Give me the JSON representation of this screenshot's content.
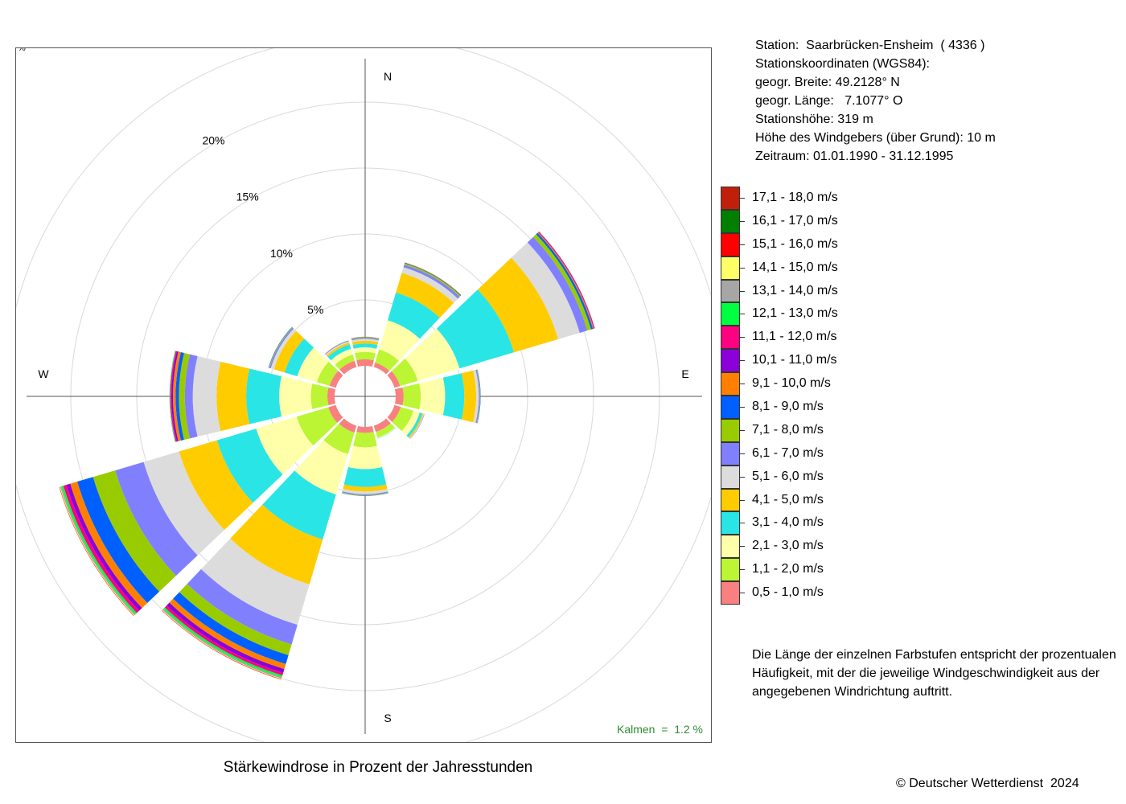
{
  "info": {
    "lines": [
      "Station:  Saarbrücken-Ensheim  ( 4336 )",
      "Stationskoordinaten (WGS84):",
      "geogr. Breite: 49.2128° N",
      "geogr. Länge:   7.1077° O",
      "Stationshöhe: 319 m",
      "Höhe des Windgebers (über Grund): 10 m",
      "Zeitraum: 01.01.1990 - 31.12.1995"
    ]
  },
  "legend": [
    {
      "label": "17,1 - 18,0 m/s",
      "color": "#c0200a"
    },
    {
      "label": "16,1 - 17,0 m/s",
      "color": "#007f00"
    },
    {
      "label": "15,1 - 16,0 m/s",
      "color": "#ff0000"
    },
    {
      "label": "14,1 - 15,0 m/s",
      "color": "#ffff66"
    },
    {
      "label": "13,1 - 14,0 m/s",
      "color": "#a6a6a6"
    },
    {
      "label": "12,1 - 13,0 m/s",
      "color": "#00ff40"
    },
    {
      "label": "11,1 - 12,0 m/s",
      "color": "#ff0080"
    },
    {
      "label": "10,1 - 11,0 m/s",
      "color": "#8b00d9"
    },
    {
      "label": "9,1 - 10,0 m/s",
      "color": "#ff8000"
    },
    {
      "label": "8,1 - 9,0 m/s",
      "color": "#0060ff"
    },
    {
      "label": "7,1 - 8,0 m/s",
      "color": "#99cc00"
    },
    {
      "label": "6,1 - 7,0 m/s",
      "color": "#8080ff"
    },
    {
      "label": "5,1 - 6,0 m/s",
      "color": "#dcdcdc"
    },
    {
      "label": "4,1 - 5,0 m/s",
      "color": "#ffcc00"
    },
    {
      "label": "3,1 - 4,0 m/s",
      "color": "#2ae5e5"
    },
    {
      "label": "2,1 - 3,0 m/s",
      "color": "#ffffaa"
    },
    {
      "label": "1,1 - 2,0 m/s",
      "color": "#bbf533"
    },
    {
      "label": "0,5 - 1,0 m/s",
      "color": "#f98080"
    }
  ],
  "note": [
    "Die Länge der einzelnen Farbstufen entspricht der prozentualen",
    "Häufigkeit, mit der die jeweilige Windgeschwindigkeit aus der",
    "angegebenen Windrichtung auftritt."
  ],
  "copyright": "© Deutscher Wetterdienst  2024",
  "title": "Stärkewindrose in Prozent der Jahresstunden",
  "calm": "Kalmen  =  1.2 %",
  "pct_mark": "%",
  "chart_data": {
    "type": "wind-rose",
    "title": "Stärkewindrose in Prozent der Jahresstunden",
    "unit": "%",
    "directions_deg": [
      0,
      30,
      60,
      90,
      120,
      150,
      180,
      210,
      240,
      270,
      300,
      330
    ],
    "compass_labels": {
      "N": "N",
      "E": "E",
      "S": "S",
      "W": "W"
    },
    "ring_values": [
      5,
      10,
      15,
      20,
      25
    ],
    "ring_labels": [
      "5%",
      "10%",
      "15%",
      "20%"
    ],
    "calm_percent": 1.2,
    "speed_classes": [
      "0,5 - 1,0 m/s",
      "1,1 - 2,0 m/s",
      "2,1 - 3,0 m/s",
      "3,1 - 4,0 m/s",
      "4,1 - 5,0 m/s",
      "5,1 - 6,0 m/s",
      "6,1 - 7,0 m/s",
      "7,1 - 8,0 m/s",
      "8,1 - 9,0 m/s",
      "9,1 - 10,0 m/s",
      "10,1 - 11,0 m/s",
      "11,1 - 12,0 m/s",
      "12,1 - 13,0 m/s",
      "13,1 - 14,0 m/s",
      "14,1 - 15,0 m/s",
      "15,1 - 16,0 m/s",
      "16,1 - 17,0 m/s",
      "17,1 - 18,0 m/s"
    ],
    "frequencies": [
      [
        0.5,
        0.55,
        0.35,
        0.3,
        0.2,
        0.15,
        0.07,
        0.05,
        0.02,
        0.02
      ],
      [
        0.35,
        1.05,
        2.3,
        2.2,
        1.55,
        0.45,
        0.2,
        0.1,
        0.05,
        0.03
      ],
      [
        0.45,
        1.4,
        3.3,
        4.3,
        3.5,
        1.7,
        0.6,
        0.3,
        0.15,
        0.08,
        0.04,
        0.03
      ],
      [
        0.6,
        1.3,
        1.85,
        1.45,
        0.9,
        0.2,
        0.08,
        0.04,
        0.02
      ],
      [
        0.5,
        1.0,
        0.5,
        0.2,
        0.1,
        0.05,
        0.03
      ],
      [
        0.5,
        0.45,
        0.05,
        0.02
      ],
      [
        0.45,
        1.1,
        1.65,
        1.35,
        0.35,
        0.2,
        0.08,
        0.04,
        0.02
      ],
      [
        0.55,
        1.7,
        3.2,
        3.55,
        3.55,
        3.2,
        1.55,
        0.85,
        0.7,
        0.4,
        0.3,
        0.2,
        0.15,
        0.1,
        0.05,
        0.03
      ],
      [
        0.6,
        2.5,
        3.2,
        3.1,
        3.0,
        2.8,
        2.25,
        1.75,
        1.25,
        0.55,
        0.3,
        0.25,
        0.15,
        0.1,
        0.05,
        0.03
      ],
      [
        0.55,
        1.25,
        2.4,
        2.5,
        2.25,
        1.8,
        0.6,
        0.45,
        0.25,
        0.2,
        0.12,
        0.08,
        0.04,
        0.03
      ],
      [
        0.5,
        1.0,
        1.55,
        1.0,
        0.85,
        0.25,
        0.1,
        0.05,
        0.03
      ],
      [
        0.5,
        0.5,
        0.45,
        0.35,
        0.15,
        0.1,
        0.05,
        0.02
      ]
    ]
  }
}
